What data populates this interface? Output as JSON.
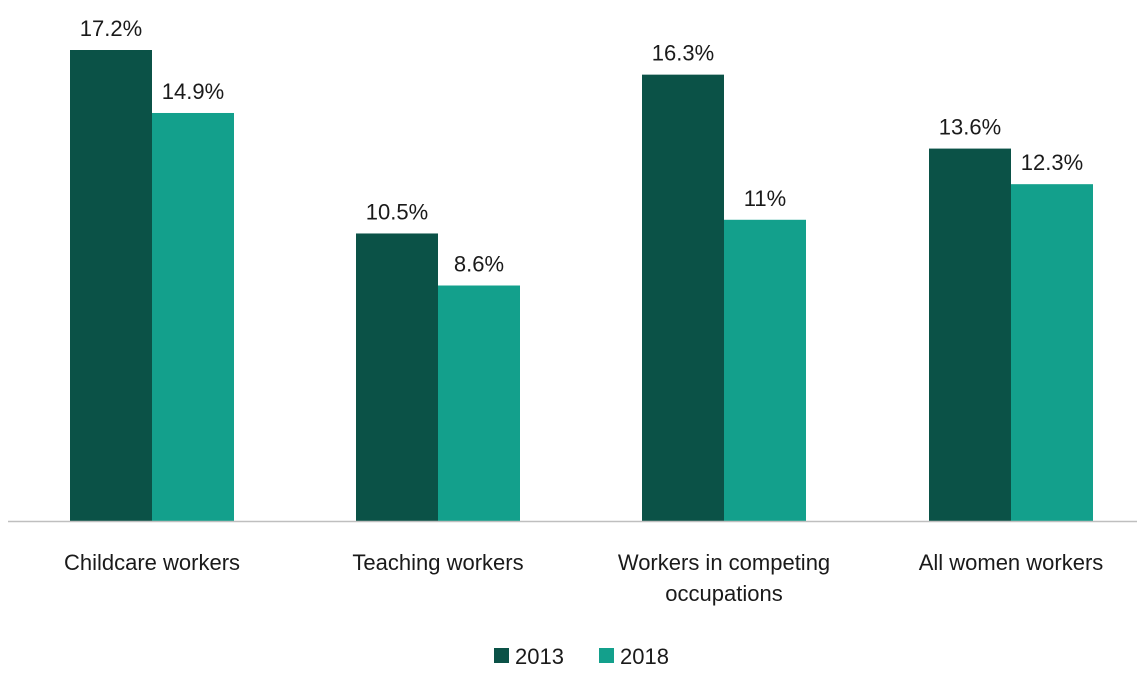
{
  "chart_data": {
    "type": "bar",
    "categories": [
      [
        "Childcare workers"
      ],
      [
        "Teaching workers"
      ],
      [
        "Workers in competing",
        "occupations"
      ],
      [
        "All women workers"
      ]
    ],
    "series": [
      {
        "name": "2013",
        "color": "#0b5247",
        "values": [
          17.2,
          10.5,
          16.3,
          13.6
        ],
        "labels": [
          "17.2%",
          "10.5%",
          "16.3%",
          "13.6%"
        ]
      },
      {
        "name": "2018",
        "color": "#13a08c",
        "values": [
          14.9,
          8.6,
          11.0,
          12.3
        ],
        "labels": [
          "14.9%",
          "8.6%",
          "11%",
          "12.3%"
        ]
      }
    ],
    "ylim": [
      0,
      17.2
    ],
    "title": "",
    "xlabel": "",
    "ylabel": "",
    "grid": false,
    "legend_position": "bottom-center",
    "axis_color": "#bfbfbf"
  }
}
